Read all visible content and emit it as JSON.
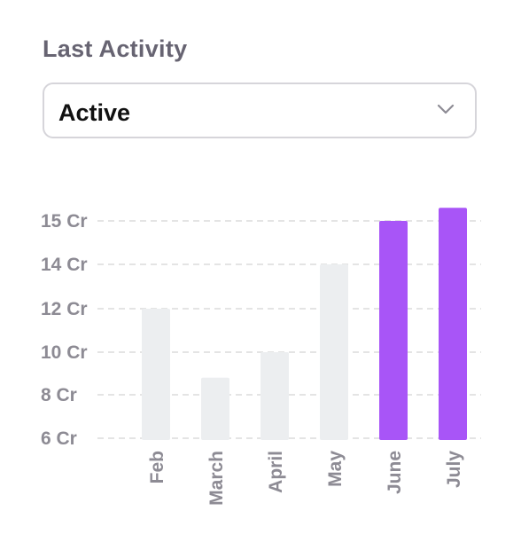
{
  "filter": {
    "label": "Last Activity",
    "selected": "Active"
  },
  "chart_data": {
    "type": "bar",
    "categories": [
      "Feb",
      "March",
      "April",
      "May",
      "June",
      "July"
    ],
    "values": [
      12,
      8.8,
      10,
      14,
      15,
      15.3
    ],
    "highlighted": [
      false,
      false,
      false,
      false,
      true,
      true
    ],
    "y_ticks": [
      6,
      8,
      10,
      12,
      14,
      15
    ],
    "y_tick_labels": [
      "6 Cr",
      "8 Cr",
      "10 Cr",
      "12 Cr",
      "14 Cr",
      "15 Cr"
    ],
    "ylim": [
      6,
      15.5
    ],
    "grid": true,
    "colors": {
      "default": "#eceef0",
      "highlight": "#a855f7",
      "grid": "#dcdcdc",
      "label": "#8d8b94"
    }
  }
}
